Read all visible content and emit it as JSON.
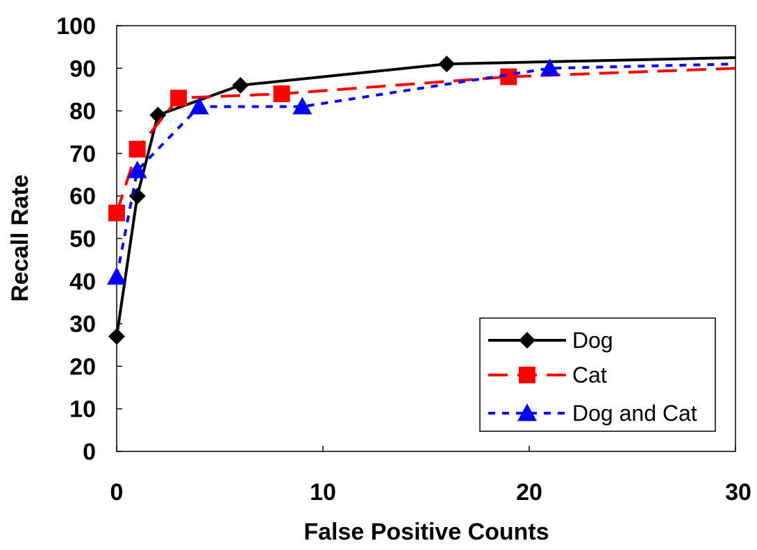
{
  "chart_data": {
    "type": "line",
    "title": "",
    "xlabel": "False Positive Counts",
    "ylabel": "Recall Rate",
    "xlim": [
      0,
      30
    ],
    "ylim": [
      0,
      100
    ],
    "x_ticks": [
      0,
      10,
      20,
      30
    ],
    "y_ticks": [
      0,
      10,
      20,
      30,
      40,
      50,
      60,
      70,
      80,
      90,
      100
    ],
    "grid": false,
    "legend_position": "bottom-right",
    "series": [
      {
        "name": "Dog",
        "color": "#000000",
        "line_style": "solid",
        "marker": "diamond",
        "x": [
          0,
          1,
          2,
          6,
          16,
          30
        ],
        "y": [
          27,
          60,
          79,
          86,
          91,
          92.5
        ],
        "marker_x": [
          0,
          1,
          2,
          6,
          16
        ],
        "marker_y": [
          27,
          60,
          79,
          86,
          91
        ]
      },
      {
        "name": "Cat",
        "color": "#ff0000",
        "line_style": "dashed",
        "marker": "square",
        "x": [
          0,
          1,
          3,
          8,
          19,
          30
        ],
        "y": [
          56,
          71,
          83,
          84,
          88,
          90
        ],
        "marker_x": [
          0,
          1,
          3,
          8,
          19
        ],
        "marker_y": [
          56,
          71,
          83,
          84,
          88
        ]
      },
      {
        "name": "Dog and Cat",
        "color": "#0000ff",
        "line_style": "dotted",
        "marker": "triangle",
        "x": [
          0,
          1,
          4,
          9,
          21,
          30
        ],
        "y": [
          41,
          66,
          81,
          81,
          90,
          91
        ],
        "marker_x": [
          0,
          1,
          4,
          9,
          21
        ],
        "marker_y": [
          41,
          66,
          81,
          81,
          90
        ]
      }
    ]
  }
}
